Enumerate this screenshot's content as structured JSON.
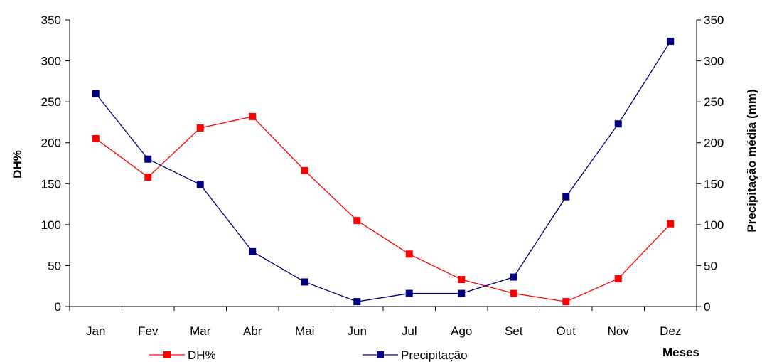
{
  "chart_data": {
    "type": "line",
    "categories": [
      "Jan",
      "Fev",
      "Mar",
      "Abr",
      "Mai",
      "Jun",
      "Jul",
      "Ago",
      "Set",
      "Out",
      "Nov",
      "Dez"
    ],
    "series": [
      {
        "name": "DH%",
        "axis": "left",
        "color": "#ff0000",
        "values": [
          205,
          158,
          218,
          232,
          166,
          105,
          64,
          33,
          16,
          6,
          34,
          101
        ]
      },
      {
        "name": "Precipitação",
        "axis": "right",
        "color": "#000080",
        "values": [
          260,
          180,
          149,
          67,
          30,
          6,
          16,
          16,
          36,
          134,
          223,
          324
        ]
      }
    ],
    "ylabel": "DH%",
    "y2label": "Precipitação média (mm)",
    "xlabel": "Meses",
    "ylim": [
      0,
      350
    ],
    "y2lim": [
      0,
      350
    ],
    "yticks": [
      0,
      50,
      100,
      150,
      200,
      250,
      300,
      350
    ],
    "grid": false,
    "legend_position": "bottom"
  }
}
